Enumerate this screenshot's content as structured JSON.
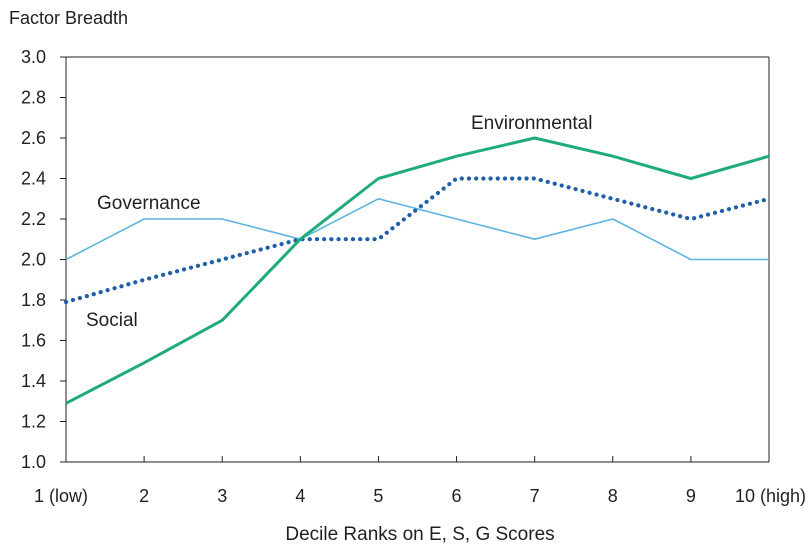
{
  "chart_data": {
    "type": "line",
    "title": "Factor Breadth",
    "xlabel": "Decile Ranks on E, S, G Scores",
    "ylabel": "",
    "categories": [
      "1 (low)",
      "2",
      "3",
      "4",
      "5",
      "6",
      "7",
      "8",
      "9",
      "10 (high)"
    ],
    "yticks": [
      "1.0",
      "1.2",
      "1.4",
      "1.6",
      "1.8",
      "2.0",
      "2.2",
      "2.4",
      "2.6",
      "2.8",
      "3.0"
    ],
    "ylim": [
      1.0,
      3.0
    ],
    "grid": false,
    "series": [
      {
        "name": "Environmental",
        "style": "solid-thick",
        "color": "#1fab7a",
        "values": [
          1.29,
          1.49,
          1.7,
          2.1,
          2.4,
          2.51,
          2.6,
          2.51,
          2.4,
          2.51
        ]
      },
      {
        "name": "Social",
        "style": "dotted",
        "color": "#1f5fa8",
        "values": [
          1.79,
          1.9,
          2.0,
          2.1,
          2.1,
          2.4,
          2.4,
          2.3,
          2.2,
          2.3
        ]
      },
      {
        "name": "Governance",
        "style": "solid-thin",
        "color": "#5db4e0",
        "values": [
          2.0,
          2.2,
          2.2,
          2.1,
          2.3,
          2.2,
          2.1,
          2.2,
          2.0,
          2.0
        ]
      }
    ]
  }
}
